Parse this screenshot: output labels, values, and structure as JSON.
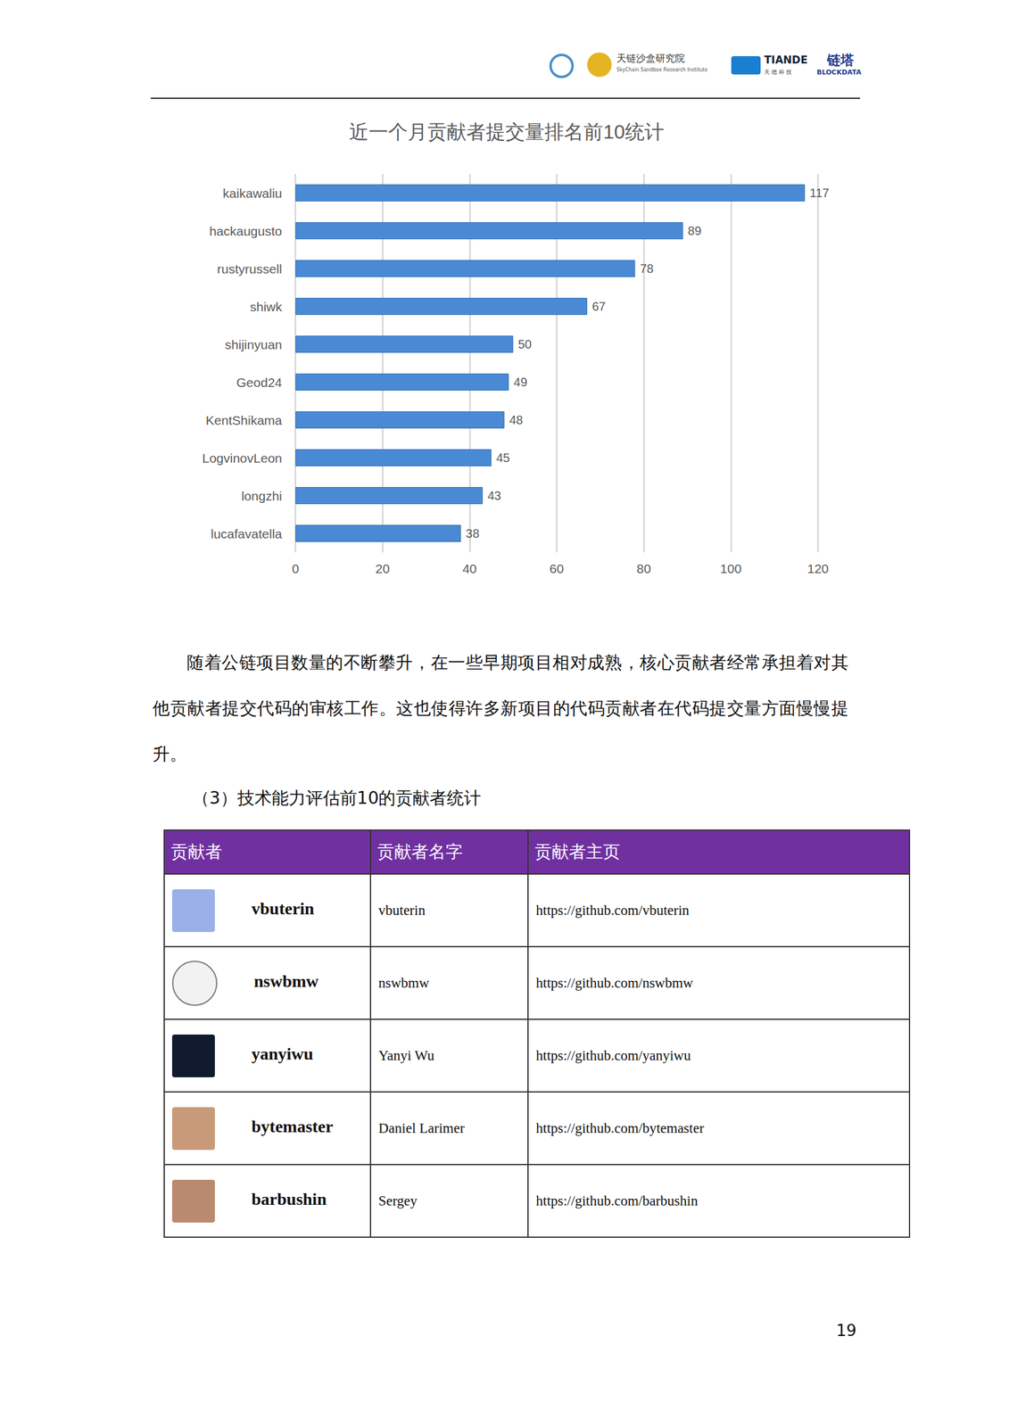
{
  "header": {
    "logos": [
      "天链沙盒研究院",
      "SkyChain Sandbox Research Institute",
      "TIANDE",
      "天 德 科 技",
      "链塔",
      "BLOCKDATA"
    ]
  },
  "chart_data": {
    "type": "bar",
    "title": "近一个月贡献者提交量排名前10统计",
    "categories": [
      "kaikawaliu",
      "hackaugusto",
      "rustyrussell",
      "shiwk",
      "shijinyuan",
      "Geod24",
      "KentShikama",
      "LogvinovLeon",
      "longzhi",
      "lucafavatella"
    ],
    "values": [
      117,
      89,
      78,
      67,
      50,
      49,
      48,
      45,
      43,
      38
    ],
    "color": "#4a8ad4",
    "orientation": "horizontal",
    "data_labels": true,
    "xlim": [
      0,
      120
    ],
    "xticks": [
      0,
      20,
      40,
      60,
      80,
      100,
      120
    ],
    "grid": true
  },
  "paragraph": "随着公链项目数量的不断攀升，在一些早期项目相对成熟，核心贡献者经常承担着对其他贡献者提交代码的审核工作。这也使得许多新项目的代码贡献者在代码提交量方面慢慢提升。",
  "section_title": "（3）技术能力评估前10的贡献者统计",
  "table": {
    "header": [
      "贡献者",
      "贡献者名字",
      "贡献者主页"
    ],
    "rows": [
      [
        "vbuterin",
        "vbuterin",
        "https://github.com/vbuterin"
      ],
      [
        "nswbmw",
        "nswbmw",
        "https://github.com/nswbmw"
      ],
      [
        "yanyiwu",
        "Yanyi Wu",
        "https://github.com/yanyiwu"
      ],
      [
        "bytemaster",
        "Daniel Larimer",
        "https://github.com/bytemaster"
      ],
      [
        "barbushin",
        "Sergey",
        "https://github.com/barbushin"
      ]
    ]
  },
  "page_number": "19"
}
